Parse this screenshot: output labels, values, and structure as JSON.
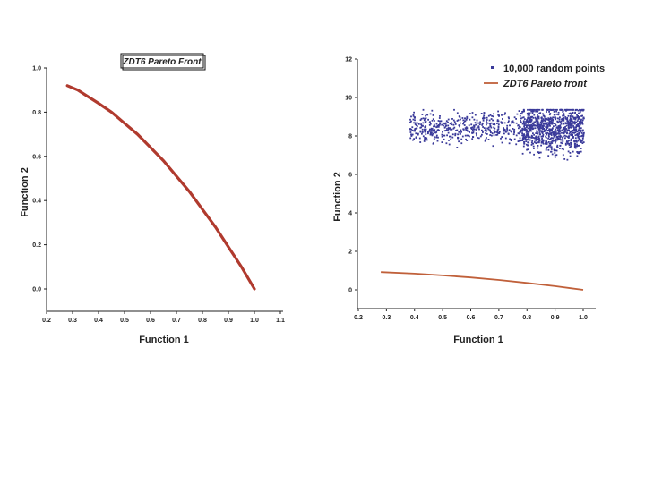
{
  "chart_data": [
    {
      "type": "line",
      "title": "ZDT6 Pareto Front",
      "xlabel": "Function 1",
      "ylabel": "Function 2",
      "xlim": [
        0.2,
        1.1
      ],
      "ylim": [
        -0.1,
        1.0
      ],
      "xticks": [
        "0.2",
        "0.3",
        "0.4",
        "0.5",
        "0.6",
        "0.7",
        "0.8",
        "0.9",
        "1.0",
        "1.1"
      ],
      "yticks": [
        "0.0",
        "0.2",
        "0.4",
        "0.6",
        "0.8",
        "1.0"
      ],
      "series": [
        {
          "x": [
            0.28,
            0.32,
            0.36,
            0.4,
            0.45,
            0.5,
            0.55,
            0.6,
            0.65,
            0.7,
            0.75,
            0.8,
            0.85,
            0.9,
            0.95,
            1.0
          ],
          "y": [
            0.92,
            0.9,
            0.87,
            0.84,
            0.8,
            0.75,
            0.7,
            0.64,
            0.58,
            0.51,
            0.44,
            0.36,
            0.28,
            0.19,
            0.1,
            0.0
          ]
        }
      ],
      "line_color": "#b03a2e",
      "grid": false
    },
    {
      "type": "scatter",
      "xlabel": "Function 1",
      "ylabel": "Function 2",
      "xlim": [
        0.2,
        1.05
      ],
      "ylim": [
        -1,
        12
      ],
      "xticks": [
        "0.2",
        "0.3",
        "0.4",
        "0.5",
        "0.6",
        "0.7",
        "0.8",
        "0.9",
        "1.0"
      ],
      "yticks": [
        "0",
        "2",
        "4",
        "6",
        "8",
        "10",
        "12"
      ],
      "legend_position": "top-right",
      "series": [
        {
          "name": "10,000 random points",
          "kind": "scatter",
          "x_range": [
            0.38,
            1.0
          ],
          "y_range": [
            6.8,
            9.4
          ],
          "count_label": "10,000",
          "color": "#3a3a9a"
        },
        {
          "name": "ZDT6 Pareto front",
          "kind": "line",
          "x": [
            0.28,
            0.4,
            0.5,
            0.6,
            0.7,
            0.8,
            0.9,
            1.0
          ],
          "y": [
            0.92,
            0.84,
            0.75,
            0.64,
            0.51,
            0.36,
            0.19,
            0.0
          ],
          "color": "#c0603a"
        }
      ],
      "grid": false
    }
  ]
}
